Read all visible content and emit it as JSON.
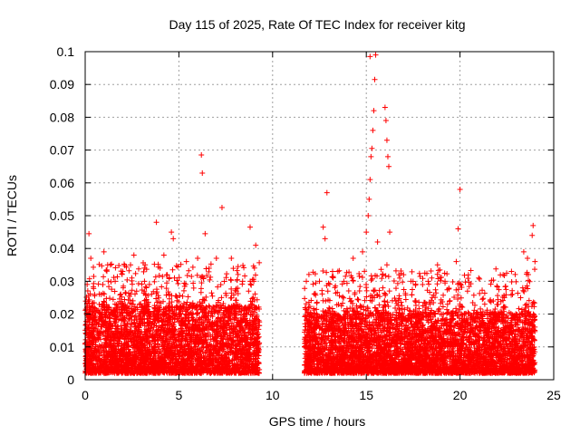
{
  "chart_data": {
    "type": "scatter",
    "title": "Day 115 of 2025, Rate Of TEC Index for receiver kitg",
    "xlabel": "GPS time / hours",
    "ylabel": "ROTI / TECUs",
    "xlim": [
      0,
      25
    ],
    "ylim": [
      0,
      0.1
    ],
    "xticks": [
      0,
      5,
      10,
      15,
      20,
      25
    ],
    "xtick_labels": [
      "0",
      "5",
      "10",
      "15",
      "20",
      "25"
    ],
    "yticks": [
      0,
      0.01,
      0.02,
      0.03,
      0.04,
      0.05,
      0.06,
      0.07,
      0.08,
      0.09,
      0.1
    ],
    "ytick_labels": [
      "0",
      "0.01",
      "0.02",
      "0.03",
      "0.04",
      "0.05",
      "0.06",
      "0.07",
      "0.08",
      "0.09",
      "0.1"
    ],
    "grid": true,
    "marker": "+",
    "series": [
      {
        "name": "ROTI",
        "color": "#ff0000",
        "points": [
          [
            0.2,
            0.0445
          ],
          [
            0.3,
            0.037
          ],
          [
            0.5,
            0.026
          ],
          [
            1.0,
            0.039
          ],
          [
            1.2,
            0.035
          ],
          [
            1.6,
            0.03
          ],
          [
            2.0,
            0.033
          ],
          [
            2.6,
            0.038
          ],
          [
            3.2,
            0.035
          ],
          [
            3.8,
            0.048
          ],
          [
            4.2,
            0.038
          ],
          [
            4.6,
            0.045
          ],
          [
            4.7,
            0.043
          ],
          [
            5.4,
            0.036
          ],
          [
            6.0,
            0.037
          ],
          [
            6.2,
            0.0685
          ],
          [
            6.25,
            0.063
          ],
          [
            6.4,
            0.0445
          ],
          [
            7.3,
            0.0525
          ],
          [
            7.0,
            0.037
          ],
          [
            7.8,
            0.037
          ],
          [
            8.4,
            0.03
          ],
          [
            8.8,
            0.0465
          ],
          [
            9.1,
            0.041
          ],
          [
            9.0,
            0.03
          ],
          [
            11.8,
            0.03
          ],
          [
            12.5,
            0.03
          ],
          [
            12.7,
            0.0465
          ],
          [
            12.8,
            0.043
          ],
          [
            12.9,
            0.057
          ],
          [
            13.2,
            0.033
          ],
          [
            13.8,
            0.03
          ],
          [
            14.3,
            0.037
          ],
          [
            14.8,
            0.039
          ],
          [
            15.0,
            0.045
          ],
          [
            15.1,
            0.05
          ],
          [
            15.15,
            0.055
          ],
          [
            15.2,
            0.061
          ],
          [
            15.25,
            0.068
          ],
          [
            15.3,
            0.0705
          ],
          [
            15.35,
            0.076
          ],
          [
            15.4,
            0.082
          ],
          [
            15.45,
            0.0915
          ],
          [
            15.5,
            0.099
          ],
          [
            15.2,
            0.0985
          ],
          [
            15.6,
            0.042
          ],
          [
            16.0,
            0.083
          ],
          [
            16.05,
            0.079
          ],
          [
            16.1,
            0.073
          ],
          [
            16.15,
            0.068
          ],
          [
            16.2,
            0.065
          ],
          [
            16.25,
            0.045
          ],
          [
            16.1,
            0.035
          ],
          [
            17.6,
            0.024
          ],
          [
            18.3,
            0.03
          ],
          [
            18.8,
            0.035
          ],
          [
            19.2,
            0.03
          ],
          [
            19.8,
            0.036
          ],
          [
            19.9,
            0.046
          ],
          [
            20.0,
            0.058
          ],
          [
            20.4,
            0.027
          ],
          [
            21.0,
            0.031
          ],
          [
            21.6,
            0.024
          ],
          [
            22.3,
            0.032
          ],
          [
            22.8,
            0.026
          ],
          [
            23.4,
            0.039
          ],
          [
            23.6,
            0.037
          ],
          [
            23.85,
            0.044
          ],
          [
            23.9,
            0.047
          ],
          [
            24.0,
            0.036
          ]
        ],
        "dense_band": {
          "description": "dense cluster of points",
          "segments": [
            {
              "x_start": 0.0,
              "x_end": 9.3,
              "y_min": 0.002,
              "y_max": 0.022
            },
            {
              "x_start": 11.7,
              "x_end": 24.0,
              "y_min": 0.002,
              "y_max": 0.02
            }
          ]
        }
      }
    ]
  }
}
